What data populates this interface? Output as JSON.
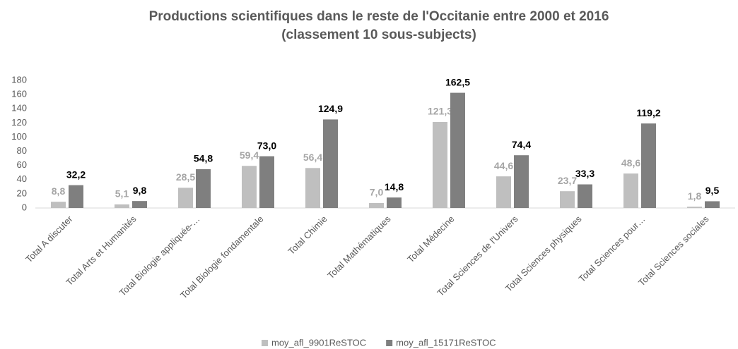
{
  "chart_data": {
    "type": "bar",
    "title": "Productions scientifiques dans le reste de l'Occitanie entre 2000 et 2016",
    "subtitle": "(classement 10 sous-subjects)",
    "categories": [
      "Total A discuter",
      "Total Arts et Humanités",
      "Total Biologie appliquée-…",
      "Total Biologie fondamentale",
      "Total Chimie",
      "Total Mathématiques",
      "Total Médecine",
      "Total Sciences de l'Univers",
      "Total Sciences physiques",
      "Total Sciences pour…",
      "Total Sciences sociales"
    ],
    "series": [
      {
        "name": "moy_afl_9901ReSTOC",
        "color": "#bfbfbf",
        "values": [
          8.8,
          5.1,
          28.5,
          59.4,
          56.4,
          7.0,
          121.3,
          44.6,
          23.7,
          48.6,
          1.8
        ],
        "value_labels": [
          "8,8",
          "5,1",
          "28,5",
          "59,4",
          "56,4",
          "7,0",
          "121,3",
          "44,6",
          "23,7",
          "48,6",
          "1,8"
        ]
      },
      {
        "name": "moy_afl_15171ReSTOC",
        "color": "#7f7f7f",
        "values": [
          32.2,
          9.8,
          54.8,
          73.0,
          124.9,
          14.8,
          162.5,
          74.4,
          33.3,
          119.2,
          9.5
        ],
        "value_labels": [
          "32,2",
          "9,8",
          "54,8",
          "73,0",
          "124,9",
          "14,8",
          "162,5",
          "74,4",
          "33,3",
          "119,2",
          "9,5"
        ]
      }
    ],
    "ylim": [
      0,
      180
    ],
    "yticks": [
      0,
      20,
      40,
      60,
      80,
      100,
      120,
      140,
      160,
      180
    ],
    "grid": false,
    "legend": "bottom"
  }
}
